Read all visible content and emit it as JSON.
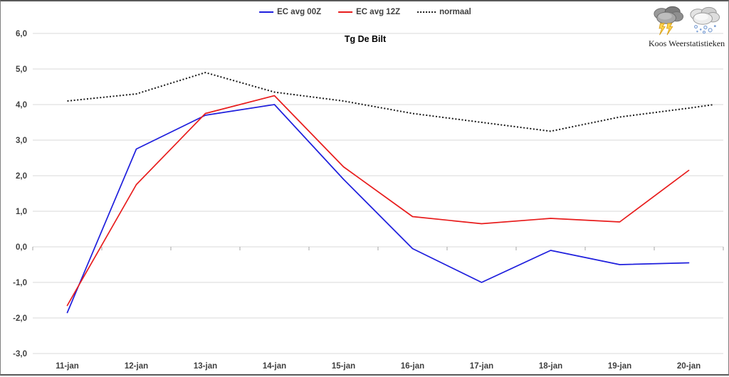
{
  "branding": {
    "name": "Koos Weerstatistieken",
    "icons": [
      "storm-cloud-icon",
      "snow-cloud-icon"
    ]
  },
  "chart_data": {
    "type": "line",
    "title": "Tg De Bilt",
    "categories": [
      "11-jan",
      "12-jan",
      "13-jan",
      "14-jan",
      "15-jan",
      "16-jan",
      "17-jan",
      "18-jan",
      "19-jan",
      "20-jan"
    ],
    "series": [
      {
        "name": "EC avg 00Z",
        "color": "#1f1fdd",
        "style": "solid",
        "values": [
          -1.85,
          2.75,
          3.7,
          4.0,
          1.9,
          -0.05,
          -1.0,
          -0.1,
          -0.5,
          -0.45
        ]
      },
      {
        "name": "EC avg 12Z",
        "color": "#e81c1c",
        "style": "solid",
        "values": [
          -1.65,
          1.75,
          3.75,
          4.25,
          2.25,
          0.85,
          0.65,
          0.8,
          0.7,
          2.15
        ]
      },
      {
        "name": "normaal",
        "color": "#1a1a1a",
        "style": "dotted",
        "values": [
          4.1,
          4.3,
          4.9,
          4.35,
          4.1,
          3.75,
          3.5,
          3.25,
          3.65,
          3.9
        ],
        "edge_extension_value": 4.0
      }
    ],
    "y_axis": {
      "min": -3,
      "max": 6,
      "step": 1,
      "tick_labels": [
        "6,0",
        "5,0",
        "4,0",
        "3,0",
        "2,0",
        "1,0",
        "0,0",
        "-1,0",
        "-2,0",
        "-3,0"
      ]
    },
    "x_axis": {
      "tick_marks": "between-categories"
    },
    "grid": "horizontal",
    "legend_position": "top",
    "colors": {
      "gridline": "#d9d9d9",
      "tick": "#a6a6a6",
      "axis_text": "#3f3f3f"
    }
  }
}
